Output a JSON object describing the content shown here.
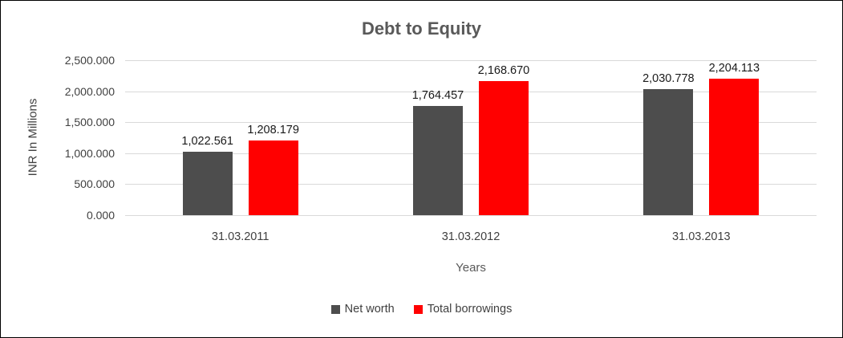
{
  "chart_data": {
    "type": "bar",
    "title": "Debt to Equity",
    "categories": [
      "31.03.2011",
      "31.03.2012",
      "31.03.2013"
    ],
    "series": [
      {
        "name": "Net worth",
        "color": "#4d4d4d",
        "values": [
          1022.561,
          1764.457,
          2030.778
        ]
      },
      {
        "name": "Total borrowings",
        "color": "#ff0000",
        "values": [
          1208.179,
          2168.67,
          2204.113
        ]
      }
    ],
    "data_labels": [
      [
        "1,022.561",
        "1,764.457",
        "2,030.778"
      ],
      [
        "1,208.179",
        "2,168.670",
        "2,204.113"
      ]
    ],
    "xlabel": "Years",
    "ylabel": "INR In Millions",
    "ylim": [
      0,
      2500
    ],
    "yticks": [
      "0.000",
      "500.000",
      "1,000.000",
      "1,500.000",
      "2,000.000",
      "2,500.000"
    ],
    "grid": true,
    "legend_position": "bottom"
  }
}
